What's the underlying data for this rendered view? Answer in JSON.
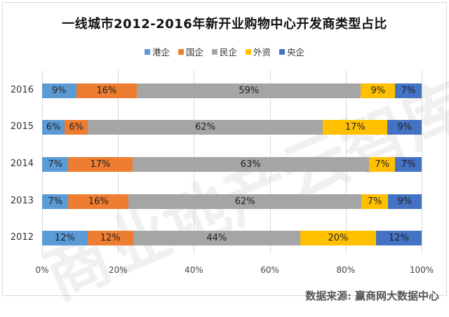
{
  "title": "一线城市2012-2016年新开业购物中心开发商类型占比",
  "legend": [
    {
      "label": "港企",
      "color": "#5b9bd5"
    },
    {
      "label": "国企",
      "color": "#ed7d31"
    },
    {
      "label": "民企",
      "color": "#a5a5a5"
    },
    {
      "label": "外资",
      "color": "#ffc000"
    },
    {
      "label": "央企",
      "color": "#4472c4"
    }
  ],
  "watermark": "商业地产云智库",
  "source": "数据来源: 赢商网大数据中心",
  "x_ticks": [
    "0%",
    "20%",
    "40%",
    "60%",
    "80%",
    "100%"
  ],
  "chart_data": {
    "type": "bar",
    "orientation": "horizontal",
    "stacked": true,
    "percent_stacked": true,
    "title": "一线城市2012-2016年新开业购物中心开发商类型占比",
    "categories": [
      "2016",
      "2015",
      "2014",
      "2013",
      "2012"
    ],
    "series": [
      {
        "name": "港企",
        "color": "#5b9bd5",
        "values": [
          9,
          6,
          7,
          7,
          12
        ]
      },
      {
        "name": "国企",
        "color": "#ed7d31",
        "values": [
          16,
          6,
          17,
          16,
          12
        ]
      },
      {
        "name": "民企",
        "color": "#a5a5a5",
        "values": [
          59,
          62,
          63,
          62,
          44
        ]
      },
      {
        "name": "外资",
        "color": "#ffc000",
        "values": [
          9,
          17,
          7,
          7,
          20
        ]
      },
      {
        "name": "央企",
        "color": "#4472c4",
        "values": [
          7,
          9,
          7,
          9,
          12
        ]
      }
    ],
    "xlabel": "",
    "ylabel": "",
    "xlim": [
      0,
      100
    ],
    "x_tick_labels": [
      "0%",
      "20%",
      "40%",
      "60%",
      "80%",
      "100%"
    ],
    "grid": true,
    "legend_position": "top",
    "data_labels": true,
    "source": "数据来源: 赢商网大数据中心"
  }
}
